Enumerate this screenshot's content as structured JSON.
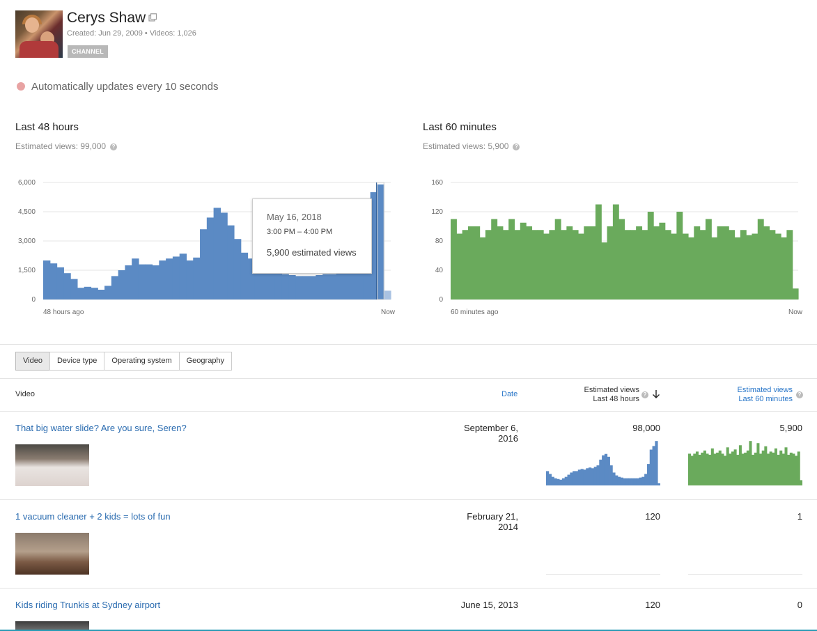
{
  "channel": {
    "name": "Cerys Shaw",
    "meta": "Created: Jun 29, 2009  •  Videos: 1,026",
    "badge": "CHANNEL"
  },
  "auto_update": "Automatically updates every 10 seconds",
  "colors": {
    "blue": "#5b8ac4",
    "green": "#6aaa5c",
    "link": "#2b6cb0",
    "accent_line": "#2a9bb5"
  },
  "panels": {
    "left": {
      "title": "Last 48 hours",
      "subtitle": "Estimated views: 99,000",
      "start_label": "48 hours ago",
      "end_label": "Now"
    },
    "right": {
      "title": "Last 60 minutes",
      "subtitle": "Estimated views: 5,900",
      "start_label": "60 minutes ago",
      "end_label": "Now"
    }
  },
  "tooltip": {
    "date": "May 16, 2018",
    "time": "3:00 PM – 4:00 PM",
    "views": "5,900 estimated views"
  },
  "chart_data": [
    {
      "type": "bar",
      "title": "Last 48 hours",
      "ylim": [
        0,
        6000
      ],
      "yticks": [
        "0",
        "1,500",
        "3,000",
        "4,500",
        "6,000"
      ],
      "ytick_values": [
        0,
        1500,
        3000,
        4500,
        6000
      ],
      "x_start": "48 hours ago",
      "x_end": "Now",
      "color": "#5b8ac4",
      "values": [
        2000,
        1850,
        1650,
        1350,
        1050,
        600,
        650,
        600,
        500,
        700,
        1200,
        1500,
        1750,
        2100,
        1800,
        1800,
        1750,
        2000,
        2100,
        2200,
        2350,
        2000,
        2150,
        3600,
        4200,
        4700,
        4450,
        3800,
        3100,
        2400,
        2100,
        1900,
        1700,
        1500,
        1350,
        1300,
        1250,
        1200,
        1200,
        1200,
        1250,
        1300,
        1300,
        1350,
        1400,
        1500,
        1600,
        4800,
        5500,
        5900,
        450
      ]
    },
    {
      "type": "bar",
      "title": "Last 60 minutes",
      "ylim": [
        0,
        160
      ],
      "yticks": [
        "0",
        "40",
        "80",
        "120",
        "160"
      ],
      "ytick_values": [
        0,
        40,
        80,
        120,
        160
      ],
      "x_start": "60 minutes ago",
      "x_end": "Now",
      "color": "#6aaa5c",
      "values": [
        110,
        90,
        95,
        100,
        100,
        85,
        95,
        110,
        100,
        95,
        110,
        95,
        105,
        100,
        95,
        95,
        90,
        95,
        110,
        95,
        100,
        95,
        90,
        100,
        100,
        130,
        78,
        100,
        130,
        110,
        95,
        95,
        100,
        95,
        120,
        100,
        105,
        95,
        90,
        120,
        90,
        85,
        100,
        95,
        110,
        85,
        100,
        100,
        95,
        85,
        95,
        88,
        90,
        110,
        100,
        95,
        90,
        85,
        95,
        15
      ]
    },
    {
      "type": "bar",
      "title": "",
      "color": "#5b8ac4",
      "values": [
        20,
        16,
        12,
        10,
        9,
        8,
        10,
        12,
        15,
        18,
        20,
        20,
        22,
        23,
        22,
        24,
        25,
        24,
        26,
        28,
        36,
        42,
        44,
        40,
        28,
        18,
        14,
        12,
        11,
        10,
        10,
        10,
        10,
        10,
        10,
        11,
        12,
        16,
        30,
        50,
        55,
        62,
        3
      ]
    },
    {
      "type": "bar",
      "title": "",
      "color": "#6aaa5c",
      "values": [
        30,
        28,
        30,
        32,
        29,
        31,
        33,
        30,
        29,
        35,
        30,
        31,
        33,
        30,
        28,
        36,
        30,
        32,
        34,
        29,
        38,
        30,
        31,
        33,
        42,
        29,
        31,
        40,
        30,
        33,
        37,
        30,
        32,
        31,
        35,
        29,
        33,
        30,
        36,
        29,
        31,
        30,
        28,
        32,
        5
      ]
    }
  ],
  "tabs": [
    "Video",
    "Device type",
    "Operating system",
    "Geography"
  ],
  "table": {
    "headers": {
      "video": "Video",
      "date": "Date",
      "est48_line1": "Estimated views",
      "est48_line2": "Last 48 hours",
      "est60_line1": "Estimated views",
      "est60_line2": "Last 60 minutes"
    },
    "rows": [
      {
        "title": "That big water slide? Are you sure, Seren?",
        "date_line1": "September 6,",
        "date_line2": "2016",
        "views48": "98,000",
        "views60": "5,900"
      },
      {
        "title": "1 vacuum cleaner + 2 kids = lots of fun",
        "date_line1": "February 21,",
        "date_line2": "2014",
        "views48": "120",
        "views60": "1"
      },
      {
        "title": "Kids riding Trunkis at Sydney airport",
        "date_line1": "June 15, 2013",
        "date_line2": "",
        "views48": "120",
        "views60": "0"
      }
    ]
  }
}
